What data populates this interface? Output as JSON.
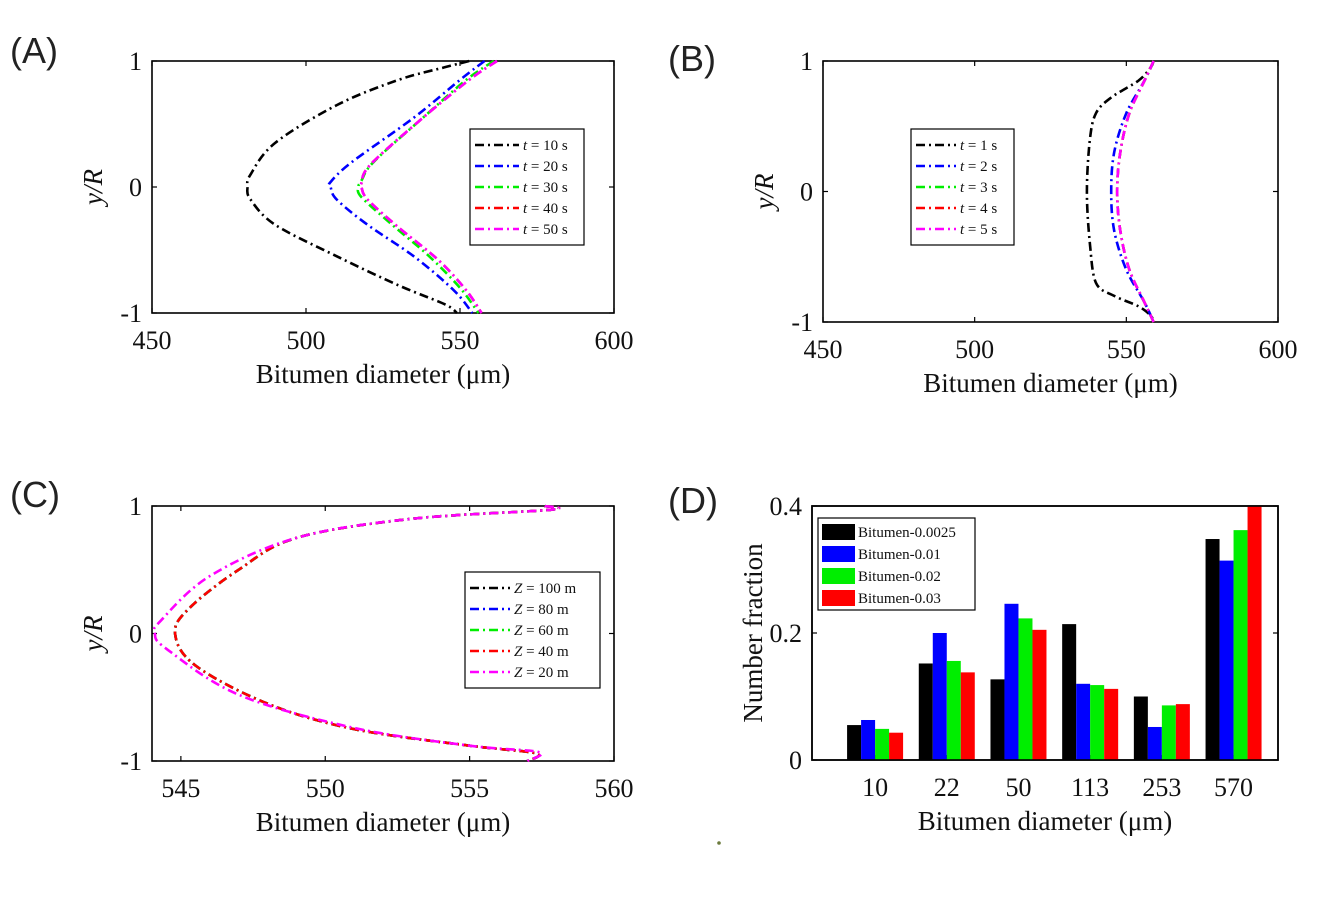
{
  "figure_colors": {
    "black": "#000000",
    "blue": "#0000ff",
    "green": "#00ee00",
    "red": "#ff0000",
    "magenta": "#ff00ff"
  },
  "chart_data": [
    {
      "panel_label": "(A)",
      "type": "line",
      "xlabel": "Bitumen diameter (μm)",
      "ylabel": "y/R",
      "xlim": [
        450,
        600
      ],
      "ylim": [
        -1,
        1
      ],
      "xticks": [
        "450",
        "500",
        "550",
        "600"
      ],
      "yticks": [
        "-1",
        "0",
        "1"
      ],
      "legend_position": "right",
      "legend": [
        "t = 10 s",
        "t = 20 s",
        "t = 30 s",
        "t = 40 s",
        "t = 50 s"
      ],
      "legend_parts": [
        {
          "sym": "t",
          "val": " = 10 s"
        },
        {
          "sym": "t",
          "val": " = 20 s"
        },
        {
          "sym": "t",
          "val": " = 30 s"
        },
        {
          "sym": "t",
          "val": " = 40 s"
        },
        {
          "sym": "t",
          "val": " = 50 s"
        }
      ],
      "series": [
        {
          "name": "t = 10 s",
          "color": "#000000",
          "points": [
            [
              553,
              1
            ],
            [
              545,
              0.95
            ],
            [
              530,
              0.85
            ],
            [
              510,
              0.65
            ],
            [
              490,
              0.35
            ],
            [
              482,
              0.1
            ],
            [
              481,
              0
            ],
            [
              482,
              -0.1
            ],
            [
              490,
              -0.3
            ],
            [
              510,
              -0.55
            ],
            [
              530,
              -0.78
            ],
            [
              545,
              -0.93
            ],
            [
              549,
              -1
            ]
          ]
        },
        {
          "name": "t = 20 s",
          "color": "#0000ff",
          "points": [
            [
              558,
              1
            ],
            [
              550,
              0.85
            ],
            [
              535,
              0.55
            ],
            [
              515,
              0.2
            ],
            [
              508,
              0.04
            ],
            [
              508,
              0
            ],
            [
              510,
              -0.1
            ],
            [
              520,
              -0.3
            ],
            [
              535,
              -0.55
            ],
            [
              548,
              -0.82
            ],
            [
              554,
              -1
            ]
          ]
        },
        {
          "name": "t = 30 s",
          "color": "#00ee00",
          "points": [
            [
              561,
              1
            ],
            [
              552,
              0.85
            ],
            [
              538,
              0.55
            ],
            [
              522,
              0.2
            ],
            [
              518,
              0.05
            ],
            [
              517,
              0
            ],
            [
              518,
              -0.08
            ],
            [
              528,
              -0.3
            ],
            [
              540,
              -0.55
            ],
            [
              550,
              -0.8
            ],
            [
              556,
              -1
            ]
          ]
        },
        {
          "name": "t = 40 s",
          "color": "#ff0000",
          "points": [
            [
              562,
              1
            ],
            [
              553,
              0.85
            ],
            [
              538,
              0.55
            ],
            [
              521,
              0.18
            ],
            [
              518,
              0.03
            ],
            [
              518,
              0
            ],
            [
              520,
              -0.1
            ],
            [
              530,
              -0.32
            ],
            [
              543,
              -0.58
            ],
            [
              552,
              -0.82
            ],
            [
              557,
              -1
            ]
          ]
        },
        {
          "name": "t = 50 s",
          "color": "#ff00ff",
          "points": [
            [
              562,
              1
            ],
            [
              553,
              0.85
            ],
            [
              538,
              0.55
            ],
            [
              521,
              0.18
            ],
            [
              518,
              0.03
            ],
            [
              518,
              0
            ],
            [
              520,
              -0.1
            ],
            [
              530,
              -0.32
            ],
            [
              543,
              -0.58
            ],
            [
              552,
              -0.82
            ],
            [
              557,
              -1
            ]
          ]
        }
      ]
    },
    {
      "panel_label": "(B)",
      "type": "line",
      "xlabel": "Bitumen diameter (μm)",
      "ylabel": "y/R",
      "xlim": [
        450,
        600
      ],
      "ylim": [
        -1,
        1
      ],
      "xticks": [
        "450",
        "500",
        "550",
        "600"
      ],
      "yticks": [
        "-1",
        "0",
        "1"
      ],
      "legend_position": "left",
      "legend": [
        "t = 1 s",
        "t = 2 s",
        "t = 3 s",
        "t = 4 s",
        "t = 5 s"
      ],
      "legend_parts": [
        {
          "sym": "t",
          "val": " = 1 s"
        },
        {
          "sym": "t",
          "val": " = 2 s"
        },
        {
          "sym": "t",
          "val": " = 3 s"
        },
        {
          "sym": "t",
          "val": " = 4 s"
        },
        {
          "sym": "t",
          "val": " = 5 s"
        }
      ],
      "series": [
        {
          "name": "t = 1 s",
          "color": "#000000",
          "points": [
            [
              559,
              1
            ],
            [
              558,
              0.95
            ],
            [
              554,
              0.85
            ],
            [
              545,
              0.72
            ],
            [
              540,
              0.6
            ],
            [
              538,
              0.4
            ],
            [
              537,
              0
            ],
            [
              538,
              -0.4
            ],
            [
              540,
              -0.7
            ],
            [
              546,
              -0.8
            ],
            [
              554,
              -0.88
            ],
            [
              558,
              -0.95
            ],
            [
              559,
              -1
            ]
          ]
        },
        {
          "name": "t = 2 s",
          "color": "#0000ff",
          "points": [
            [
              559,
              1
            ],
            [
              556,
              0.85
            ],
            [
              550,
              0.6
            ],
            [
              546,
              0.3
            ],
            [
              545,
              0
            ],
            [
              546,
              -0.3
            ],
            [
              550,
              -0.6
            ],
            [
              556,
              -0.85
            ],
            [
              559,
              -1
            ]
          ]
        },
        {
          "name": "t = 3 s",
          "color": "#00ee00",
          "points": [
            [
              559,
              1
            ],
            [
              556,
              0.85
            ],
            [
              551,
              0.6
            ],
            [
              548,
              0.3
            ],
            [
              547,
              0
            ],
            [
              548,
              -0.3
            ],
            [
              551,
              -0.6
            ],
            [
              556,
              -0.85
            ],
            [
              559,
              -1
            ]
          ]
        },
        {
          "name": "t = 4 s",
          "color": "#ff0000",
          "points": [
            [
              559,
              1
            ],
            [
              556,
              0.85
            ],
            [
              551,
              0.6
            ],
            [
              548,
              0.3
            ],
            [
              547,
              0
            ],
            [
              548,
              -0.3
            ],
            [
              551,
              -0.6
            ],
            [
              556,
              -0.85
            ],
            [
              559,
              -1
            ]
          ]
        },
        {
          "name": "t = 5 s",
          "color": "#ff00ff",
          "points": [
            [
              559,
              1
            ],
            [
              556,
              0.85
            ],
            [
              551,
              0.6
            ],
            [
              548,
              0.3
            ],
            [
              547,
              0
            ],
            [
              548,
              -0.3
            ],
            [
              551,
              -0.6
            ],
            [
              556,
              -0.85
            ],
            [
              559,
              -1
            ]
          ]
        }
      ]
    },
    {
      "panel_label": "(C)",
      "type": "line",
      "xlabel": "Bitumen diameter (μm)",
      "ylabel": "y/R",
      "xlim": [
        544,
        560
      ],
      "ylim": [
        -1,
        1
      ],
      "xticks": [
        "545",
        "550",
        "555",
        "560"
      ],
      "xtick_values": [
        545,
        550,
        555,
        560
      ],
      "yticks": [
        "-1",
        "0",
        "1"
      ],
      "legend_position": "right",
      "legend": [
        "Z = 100 m",
        "Z = 80 m",
        "Z = 60 m",
        "Z = 40 m",
        "Z = 20 m"
      ],
      "legend_parts": [
        {
          "sym": "Z",
          "val": " = 100 m"
        },
        {
          "sym": "Z",
          "val": " = 80 m"
        },
        {
          "sym": "Z",
          "val": " = 60 m"
        },
        {
          "sym": "Z",
          "val": " = 40 m"
        },
        {
          "sym": "Z",
          "val": " = 20 m"
        }
      ],
      "series": [
        {
          "name": "Z = 100 m",
          "color": "#000000",
          "points": [
            [
              557.6,
              1
            ],
            [
              557.8,
              0.97
            ],
            [
              553,
              0.9
            ],
            [
              549,
              0.75
            ],
            [
              547,
              0.5
            ],
            [
              545.3,
              0.2
            ],
            [
              544.8,
              0
            ],
            [
              545.5,
              -0.25
            ],
            [
              548,
              -0.55
            ],
            [
              551,
              -0.75
            ],
            [
              555,
              -0.88
            ],
            [
              557.3,
              -0.94
            ],
            [
              557,
              -1
            ]
          ]
        },
        {
          "name": "Z = 80 m",
          "color": "#0000ff",
          "points": [
            [
              557.6,
              1
            ],
            [
              557.8,
              0.97
            ],
            [
              553,
              0.9
            ],
            [
              549,
              0.75
            ],
            [
              547,
              0.5
            ],
            [
              545.3,
              0.2
            ],
            [
              544.8,
              0
            ],
            [
              545.5,
              -0.25
            ],
            [
              548,
              -0.55
            ],
            [
              551,
              -0.75
            ],
            [
              555,
              -0.88
            ],
            [
              557.3,
              -0.94
            ],
            [
              557,
              -1
            ]
          ]
        },
        {
          "name": "Z = 60 m",
          "color": "#00ee00",
          "points": [
            [
              557.6,
              1
            ],
            [
              557.8,
              0.97
            ],
            [
              553,
              0.9
            ],
            [
              549,
              0.75
            ],
            [
              547,
              0.5
            ],
            [
              545.3,
              0.2
            ],
            [
              544.8,
              0
            ],
            [
              545.5,
              -0.25
            ],
            [
              548,
              -0.55
            ],
            [
              551,
              -0.75
            ],
            [
              555,
              -0.88
            ],
            [
              557.3,
              -0.94
            ],
            [
              557,
              -1
            ]
          ]
        },
        {
          "name": "Z = 40 m",
          "color": "#ff0000",
          "points": [
            [
              557.6,
              1
            ],
            [
              557.8,
              0.97
            ],
            [
              553,
              0.9
            ],
            [
              549,
              0.75
            ],
            [
              547,
              0.5
            ],
            [
              545.3,
              0.2
            ],
            [
              544.8,
              0
            ],
            [
              545.5,
              -0.25
            ],
            [
              548,
              -0.55
            ],
            [
              551,
              -0.75
            ],
            [
              555,
              -0.88
            ],
            [
              557.3,
              -0.94
            ],
            [
              557,
              -1
            ]
          ]
        },
        {
          "name": "Z = 20 m",
          "color": "#ff00ff",
          "points": [
            [
              557.6,
              1
            ],
            [
              557.8,
              0.97
            ],
            [
              553,
              0.9
            ],
            [
              549,
              0.75
            ],
            [
              546,
              0.45
            ],
            [
              544.3,
              0.1
            ],
            [
              544.1,
              0
            ],
            [
              544.5,
              -0.12
            ],
            [
              547,
              -0.48
            ],
            [
              551,
              -0.74
            ],
            [
              555,
              -0.88
            ],
            [
              557.4,
              -0.93
            ],
            [
              557,
              -1
            ]
          ]
        }
      ]
    },
    {
      "panel_label": "(D)",
      "type": "bar",
      "xlabel": "Bitumen diameter (μm)",
      "ylabel": "Number fraction",
      "ylim": [
        0,
        0.4
      ],
      "yticks": [
        "0",
        "0.2",
        "0.4"
      ],
      "categories": [
        "10",
        "22",
        "50",
        "113",
        "253",
        "570"
      ],
      "legend_position": "top-left",
      "series": [
        {
          "name": "Bitumen-0.0025",
          "color": "#000000",
          "values": [
            0.055,
            0.152,
            0.127,
            0.214,
            0.1,
            0.348
          ]
        },
        {
          "name": "Bitumen-0.01",
          "color": "#0000ff",
          "values": [
            0.063,
            0.2,
            0.246,
            0.12,
            0.052,
            0.314
          ]
        },
        {
          "name": "Bitumen-0.02",
          "color": "#00ee00",
          "values": [
            0.049,
            0.156,
            0.223,
            0.118,
            0.086,
            0.362
          ]
        },
        {
          "name": "Bitumen-0.03",
          "color": "#ff0000",
          "values": [
            0.043,
            0.138,
            0.205,
            0.112,
            0.088,
            0.41
          ]
        }
      ]
    }
  ]
}
